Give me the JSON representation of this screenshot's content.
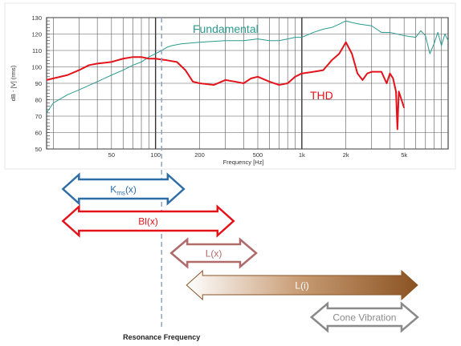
{
  "chart_data": {
    "type": "line",
    "title": "",
    "xlabel": "Frequency [Hz]",
    "ylabel": "dB - [V] (rms)",
    "xscale": "log",
    "xlim": [
      18,
      10000
    ],
    "ylim": [
      50,
      130
    ],
    "grid": true,
    "x_ticks": [
      {
        "value": 50,
        "label": "50"
      },
      {
        "value": 100,
        "label": "100"
      },
      {
        "value": 200,
        "label": "200"
      },
      {
        "value": 500,
        "label": "500"
      },
      {
        "value": 1000,
        "label": "1k"
      },
      {
        "value": 2000,
        "label": "2k"
      },
      {
        "value": 5000,
        "label": "5k"
      }
    ],
    "y_ticks": [
      50,
      60,
      70,
      80,
      90,
      100,
      110,
      120,
      130
    ],
    "series": [
      {
        "name": "Fundamental",
        "color": "#2a9a8e",
        "points": [
          [
            18,
            72
          ],
          [
            20,
            78
          ],
          [
            25,
            83
          ],
          [
            30,
            86
          ],
          [
            40,
            91
          ],
          [
            50,
            95
          ],
          [
            60,
            98
          ],
          [
            70,
            101
          ],
          [
            80,
            103
          ],
          [
            90,
            106
          ],
          [
            100,
            108
          ],
          [
            110,
            110
          ],
          [
            120,
            112
          ],
          [
            130,
            113
          ],
          [
            150,
            114
          ],
          [
            200,
            115
          ],
          [
            300,
            116
          ],
          [
            400,
            116
          ],
          [
            500,
            117
          ],
          [
            600,
            116
          ],
          [
            700,
            116
          ],
          [
            800,
            117
          ],
          [
            900,
            118
          ],
          [
            1000,
            118
          ],
          [
            1200,
            121
          ],
          [
            1400,
            123
          ],
          [
            1600,
            124
          ],
          [
            1800,
            126
          ],
          [
            2000,
            128
          ],
          [
            2200,
            127
          ],
          [
            2500,
            126
          ],
          [
            3000,
            125
          ],
          [
            3500,
            121
          ],
          [
            4000,
            121
          ],
          [
            5000,
            119
          ],
          [
            6000,
            118
          ],
          [
            6500,
            122
          ],
          [
            7000,
            119
          ],
          [
            7500,
            108
          ],
          [
            8000,
            114
          ],
          [
            8500,
            121
          ],
          [
            9000,
            113
          ],
          [
            9500,
            120
          ],
          [
            10000,
            116
          ]
        ]
      },
      {
        "name": "THD",
        "color": "#e4131b",
        "points": [
          [
            18,
            92
          ],
          [
            20,
            93
          ],
          [
            25,
            95
          ],
          [
            30,
            98
          ],
          [
            35,
            101
          ],
          [
            40,
            102
          ],
          [
            50,
            103
          ],
          [
            60,
            105
          ],
          [
            70,
            106
          ],
          [
            80,
            106
          ],
          [
            90,
            105
          ],
          [
            100,
            105
          ],
          [
            120,
            104
          ],
          [
            140,
            103
          ],
          [
            160,
            98
          ],
          [
            180,
            91
          ],
          [
            200,
            90
          ],
          [
            250,
            89
          ],
          [
            300,
            92
          ],
          [
            350,
            91
          ],
          [
            400,
            90
          ],
          [
            450,
            93
          ],
          [
            500,
            94
          ],
          [
            600,
            91
          ],
          [
            700,
            89
          ],
          [
            800,
            90
          ],
          [
            900,
            94
          ],
          [
            1000,
            96
          ],
          [
            1200,
            97
          ],
          [
            1400,
            98
          ],
          [
            1600,
            104
          ],
          [
            1800,
            108
          ],
          [
            2000,
            115
          ],
          [
            2200,
            108
          ],
          [
            2400,
            96
          ],
          [
            2600,
            92
          ],
          [
            2800,
            96
          ],
          [
            3000,
            97
          ],
          [
            3500,
            97
          ],
          [
            3800,
            90
          ],
          [
            4000,
            96
          ],
          [
            4200,
            93
          ],
          [
            4400,
            85
          ],
          [
            4500,
            62
          ],
          [
            4600,
            85
          ],
          [
            4800,
            80
          ],
          [
            5000,
            75
          ]
        ]
      }
    ],
    "annotations": {
      "resonance_frequency_hz": 110,
      "resonance_label": "Resonance Frequency",
      "ranges": [
        {
          "label_main": "K",
          "label_sub": "ms",
          "label_suffix": "(x)",
          "from_hz": 20,
          "to_hz": 160,
          "color": "#2e6ea6"
        },
        {
          "label_main": "Bl(x)",
          "from_hz": 20,
          "to_hz": 350,
          "color": "#e4131b"
        },
        {
          "label_main": "L(x)",
          "from_hz": 110,
          "to_hz": 500,
          "color": "#b06a6a"
        },
        {
          "label_main": "L(i)",
          "from_hz": 140,
          "to_hz": 10000,
          "color": "#9a5f2e",
          "gradient": true
        },
        {
          "label_main": "Cone Vibration",
          "from_hz": 1000,
          "to_hz": 10000,
          "color": "#8a8a8a"
        }
      ]
    }
  }
}
